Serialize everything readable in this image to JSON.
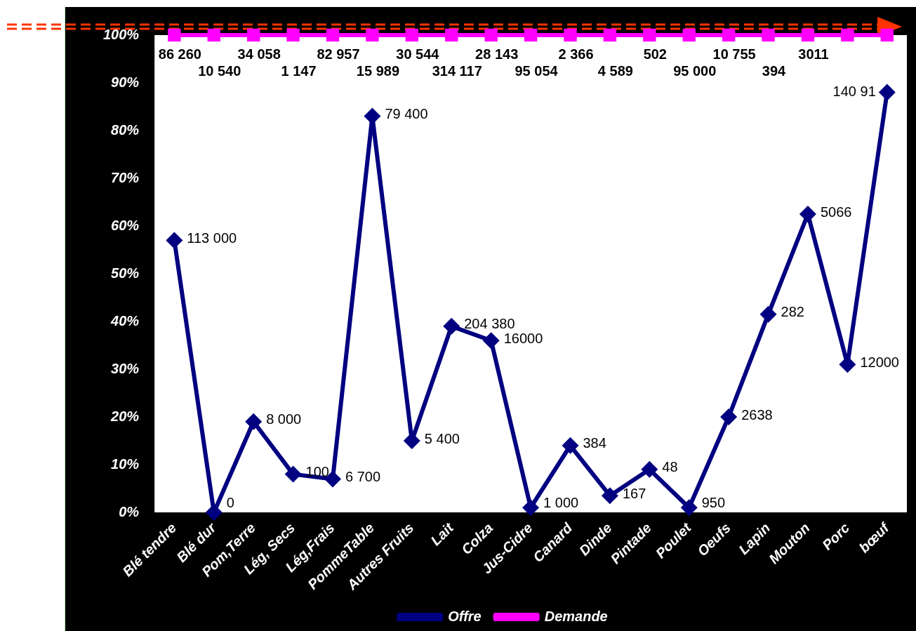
{
  "chart_data": {
    "type": "line",
    "categories": [
      "Blé tendre",
      "Blé dur",
      "Pom,Terre",
      "Lég, Secs",
      "Lég,Frais",
      "PommeTable",
      "Autres Fruits",
      "Lait",
      "Colza",
      "Jus-Cidre",
      "Canard",
      "Dinde",
      "Pintade",
      "Poulet",
      "Oeufs",
      "Lapin",
      "Mouton",
      "Porc",
      "bœuf"
    ],
    "series": [
      {
        "name": "Offre",
        "color": "#000080",
        "marker": "diamond",
        "values": [
          57,
          0,
          19,
          8,
          7,
          83,
          15,
          39,
          36,
          1,
          14,
          3.5,
          9,
          1,
          20,
          41.5,
          62.5,
          31,
          88
        ]
      },
      {
        "name": "Demande",
        "color": "#ff00ff",
        "marker": "square",
        "values": [
          100,
          100,
          100,
          100,
          100,
          100,
          100,
          100,
          100,
          100,
          100,
          100,
          100,
          100,
          100,
          100,
          100,
          100,
          100
        ]
      }
    ],
    "annotations": [
      {
        "text": "113 000",
        "x": "Blé tendre",
        "y": 57
      },
      {
        "text": "0",
        "x": "Blé dur",
        "y": 0
      },
      {
        "text": "8 000",
        "x": "Pom,Terre",
        "y": 19
      },
      {
        "text": "100",
        "x": "Lég, Secs",
        "y": 8
      },
      {
        "text": "6 700",
        "x": "Lég,Frais",
        "y": 7
      },
      {
        "text": "79 400",
        "x": "PommeTable",
        "y": 83
      },
      {
        "text": "5 400",
        "x": "Autres Fruits",
        "y": 15
      },
      {
        "text": "204 380",
        "x": "Lait",
        "y": 39
      },
      {
        "text": "16000",
        "x": "Colza",
        "y": 36
      },
      {
        "text": "1 000",
        "x": "Jus-Cidre",
        "y": 1
      },
      {
        "text": "384",
        "x": "Canard",
        "y": 14
      },
      {
        "text": "167",
        "x": "Dinde",
        "y": 3.5
      },
      {
        "text": "48",
        "x": "Pintade",
        "y": 9
      },
      {
        "text": "950",
        "x": "Poulet",
        "y": 1
      },
      {
        "text": "2638",
        "x": "Oeufs",
        "y": 20
      },
      {
        "text": "282",
        "x": "Lapin",
        "y": 41.5
      },
      {
        "text": "5066",
        "x": "Mouton",
        "y": 62.5
      },
      {
        "text": "12000",
        "x": "Porc",
        "y": 31
      },
      {
        "text": "140 91",
        "x": "bœuf",
        "y": 88
      },
      {
        "text": "86 260",
        "x": "Blé tendre",
        "y": 100
      },
      {
        "text": "10 540",
        "x": "Blé dur",
        "y": 100
      },
      {
        "text": "34 058",
        "x": "Pom,Terre",
        "y": 100
      },
      {
        "text": "1 147",
        "x": "Lég, Secs",
        "y": 100
      },
      {
        "text": "82 957",
        "x": "Lég,Frais",
        "y": 100
      },
      {
        "text": "15 989",
        "x": "PommeTable",
        "y": 100
      },
      {
        "text": "30 544",
        "x": "Autres Fruits",
        "y": 100
      },
      {
        "text": "314 117",
        "x": "Lait",
        "y": 100
      },
      {
        "text": "28 143",
        "x": "Colza",
        "y": 100
      },
      {
        "text": "95 054",
        "x": "Jus-Cidre",
        "y": 100
      },
      {
        "text": "2 366",
        "x": "Canard",
        "y": 100
      },
      {
        "text": "4 589",
        "x": "Dinde",
        "y": 100
      },
      {
        "text": "502",
        "x": "Pintade",
        "y": 100
      },
      {
        "text": "95 000",
        "x": "Poulet",
        "y": 100
      },
      {
        "text": "10 755",
        "x": "Oeufs",
        "y": 100
      },
      {
        "text": "394",
        "x": "Lapin",
        "y": 100
      },
      {
        "text": "3011",
        "x": "Mouton",
        "y": 100
      }
    ],
    "ylim": [
      0,
      100
    ],
    "yticks": [
      {
        "value": 0,
        "label": "0%"
      },
      {
        "value": 10,
        "label": "10%"
      },
      {
        "value": 20,
        "label": "20%"
      },
      {
        "value": 30,
        "label": "30%"
      },
      {
        "value": 40,
        "label": "40%"
      },
      {
        "value": 50,
        "label": "50%"
      },
      {
        "value": 60,
        "label": "60%"
      },
      {
        "value": 70,
        "label": "70%"
      },
      {
        "value": 80,
        "label": "80%"
      },
      {
        "value": 90,
        "label": "90%"
      },
      {
        "value": 100,
        "label": "100%"
      }
    ],
    "grid": false,
    "legend": "bottom"
  }
}
